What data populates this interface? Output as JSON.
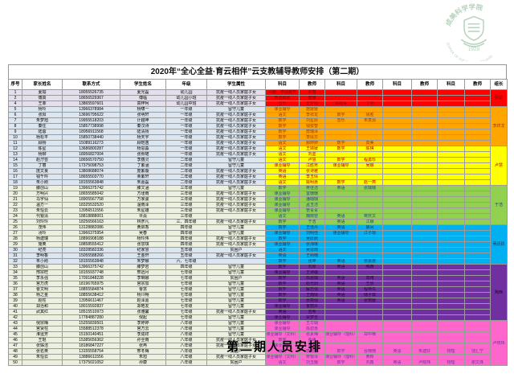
{
  "title": "2020年“全心全益·育云相伴”云支教辅导教师安排（第二期）",
  "caption": "第二期人员安排",
  "logo": {
    "year": "1928",
    "top_text": "成美科学学院",
    "bottom_text": "SCHOOL OF VOCATIONAL COLLEGE"
  },
  "colors": {
    "left": {
      "lav": "#E4DFEC",
      "blue": "#DCE6F1",
      "green": "#EBF1DE"
    },
    "bands": {
      "red": {
        "bg": "#FF0000",
        "fg": "#7F0000"
      },
      "orange": {
        "bg": "#FFA500",
        "fg": "#9C3A00"
      },
      "yellow": {
        "bg": "#FFFF00",
        "fg": "#C00000"
      },
      "green": {
        "bg": "#92D050",
        "fg": "#1F497D"
      },
      "cyan": {
        "bg": "#00B0F0",
        "fg": "#17365D"
      },
      "purple": {
        "bg": "#7030A0",
        "fg": "#26002E"
      },
      "pink": {
        "bg": "#FF66CC",
        "fg": "#7030A0"
      }
    }
  },
  "table": {
    "columns": [
      "序号",
      "家长姓名",
      "联系方式",
      "学生姓名",
      "年级",
      "学生属性",
      "科目",
      "教师",
      "科目",
      "教师",
      "科目",
      "教师",
      "科目",
      "教师",
      "组长"
    ],
    "leaders": {
      "red": "因诺",
      "orange": "李祥龙",
      "yellow": "卢慧",
      "green": "于浩",
      "cyan": "吴跃跃",
      "purple": "陶西",
      "pink": "卢晓玮"
    },
    "rows": [
      [
        "1",
        "夏瑜",
        "18055526735",
        "夏光磊",
        "幼儿园",
        "抗疫一线人员家庭子女",
        "兴趣、学前教育",
        "刘丽",
        "",
        "",
        "",
        "",
        "",
        "",
        "red",
        "lav"
      ],
      [
        "2",
        "傅高",
        "18656529367",
        "傅临",
        "幼儿园小班",
        "抗疫一线人员家庭子女",
        "英语启蒙",
        "娄珊",
        "",
        "",
        "",
        "",
        "",
        "",
        "red",
        "lav"
      ],
      [
        "4",
        "王菲",
        "13865597601",
        "高梓柯",
        "幼儿园中班",
        "抗疫一线人员家庭子女",
        "音乐",
        "王梦瑶",
        "讲故事",
        "丁宇",
        "",
        "",
        "",
        "",
        "red",
        "lav"
      ],
      [
        "5",
        "杨玲",
        "13966378984",
        "杨啸一",
        "一年级",
        "留守儿童",
        "课业辅导",
        "施媛媛",
        "",
        "",
        "",
        "",
        "",
        "",
        "orange",
        "blue"
      ],
      [
        "6",
        "张阳",
        "13696795622",
        "张明轩",
        "一年级",
        "抗疫一线人员家庭子女",
        "语文",
        "李祥龙",
        "数学",
        "徐胜",
        "",
        "",
        "",
        "",
        "orange",
        "blue"
      ],
      [
        "7",
        "朱梦旭",
        "19955518203",
        "计越坤",
        "一年级",
        "抗疫一线人员家庭子女",
        "数学",
        "刘星辰",
        "音乐",
        "朱意源",
        "",
        "",
        "",
        "",
        "orange",
        "blue"
      ],
      [
        "8",
        "秦住",
        "15857738998",
        "秦汉诗",
        "一年级",
        "抗疫一线人员家庭子女",
        "数学",
        "钱俊智",
        "",
        "",
        "",
        "",
        "",
        "",
        "orange",
        "blue"
      ],
      [
        "9",
        "陆蓉",
        "18956911568",
        "陆清扬",
        "一年级",
        "抗疫一线人员家庭子女",
        "数学",
        "唐瑞泽",
        "",
        "",
        "",
        "",
        "",
        "",
        "orange",
        "blue"
      ],
      [
        "10",
        "杨松平",
        "15850738440",
        "杨天宇",
        "一年级",
        "抗疫一线人员家庭子女",
        "数学",
        "李倩华",
        "",
        "",
        "",
        "",
        "",
        "",
        "orange",
        "blue"
      ],
      [
        "11",
        "顾杨",
        "15089116273",
        "顾晗菡",
        "一年级",
        "抗疫一线人员家庭子女",
        "语文",
        "郝婷婷",
        "数学",
        "高美",
        "",
        "",
        "",
        "",
        "orange",
        "blue"
      ],
      [
        "12",
        "陈星",
        "13686800287",
        "杨思淼",
        "一年级",
        "抗疫一线人员家庭子女",
        "语文",
        "王婧媛",
        "数学",
        "陈棋",
        "",
        "",
        "",
        "",
        "yellow",
        "blue"
      ],
      [
        "13",
        "杨柳",
        "18956827004",
        "张熙珺",
        "一年级",
        "抗疫一线人员家庭子女",
        "语文",
        "刘鉴",
        "",
        "",
        "",
        "",
        "",
        "",
        "yellow",
        "blue"
      ],
      [
        "14",
        "赵泞芸",
        "18656570750",
        "李蕴灵",
        "二年级",
        "留守儿童",
        "语文",
        "卢慧",
        "数学",
        "程勇珍",
        "",
        "",
        "",
        "",
        "yellow",
        "blue"
      ],
      [
        "15",
        "丁丽",
        "17375098753",
        "丁紫涵",
        "二年级",
        "留守儿童",
        "课业辅导",
        "江胜男",
        "课业辅导",
        "吴娜",
        "",
        "",
        "",
        "",
        "yellow",
        "blue"
      ],
      [
        "16",
        "庞文良",
        "13808688074",
        "庞紫璇",
        "二年级",
        "抗疫一线人员家庭子女",
        "英语",
        "张诗雅",
        "",
        "",
        "",
        "",
        "",
        "",
        "yellow",
        "blue"
      ],
      [
        "17",
        "钱千吟",
        "18655503770",
        "栗紫轩",
        "二年级",
        "抗疫一线人员家庭子女",
        "英语",
        "李玉倩",
        "",
        "",
        "",
        "",
        "",
        "",
        "yellow",
        "blue"
      ],
      [
        "18",
        "朱小刚",
        "18155563848",
        "朱嘉磊",
        "二年级",
        "抗疫一线人员家庭子女",
        "语文",
        "姚明惠",
        "数学",
        "赵一燕",
        "",
        "",
        "",
        "",
        "yellow",
        "blue"
      ],
      [
        "19",
        "滕创山",
        "13966375742",
        "滕文涵",
        "三年级",
        "留守儿童",
        "数学",
        "蒋佳洁",
        "英语",
        "张璐璐",
        "",
        "",
        "",
        "",
        "green",
        "green"
      ],
      [
        "20",
        "方明兴",
        "18655585042",
        "方瑾雨",
        "三年级",
        "抗疫一线人员家庭子女",
        "课业辅导",
        "宜珊珊",
        "",
        "",
        "",
        "",
        "",
        "",
        "green",
        "green"
      ],
      [
        "21",
        "马宇仙",
        "18905567758",
        "万家骏",
        "三年级",
        "抗疫一线人员家庭子女",
        "课业辅导",
        "潘璐璐",
        "",
        "",
        "",
        "",
        "",
        "",
        "green",
        "green"
      ],
      [
        "22",
        "温方一",
        "18325532520",
        "温雨泽",
        "三年级",
        "抗疫一线人员家庭子女",
        "课业辅导",
        "孟玉洁",
        "",
        "",
        "",
        "",
        "",
        "",
        "green",
        "green"
      ],
      [
        "23",
        "朱恒云",
        "13956511556",
        "朱星雄",
        "三年级",
        "抗疫一线人员家庭子女",
        "课业辅导",
        "管青青",
        "",
        "",
        "",
        "",
        "",
        "",
        "green",
        "green"
      ],
      [
        "24",
        "代银清",
        "18818888001",
        "许焱",
        "三年级",
        "",
        "语文",
        "魏婉容",
        "英语",
        "蒋庆文",
        "",
        "",
        "",
        "",
        "green",
        "green"
      ],
      [
        "25",
        "刘玲玲",
        "18256566163",
        "林彦凡",
        "三、四年级",
        "抗疫一线人员家庭子女",
        "数学",
        "于浩",
        "英语",
        "江娜",
        "",
        "",
        "",
        "",
        "green",
        "green"
      ],
      [
        "26",
        "茂伟",
        "13128882086",
        "黄启香",
        "四年级",
        "留守儿童",
        "数学",
        "王佳丹",
        "英语",
        "薛凤",
        "",
        "",
        "",
        "",
        "cyan",
        "green"
      ],
      [
        "27",
        "汤玲",
        "13966375954",
        "吴春",
        "四年级",
        "留守儿童",
        "课业辅导",
        "刘明佳",
        "课业辅导",
        "江子琼",
        "",
        "",
        "",
        "",
        "cyan",
        "green"
      ],
      [
        "28",
        "杨建瑞",
        "18896908188",
        "杨玲伟",
        "四年级",
        "抗疫一线人员家庭子女",
        "数学",
        "吴跃跃",
        "",
        "",
        "",
        "",
        "",
        "",
        "cyan",
        "green"
      ],
      [
        "29",
        "施奥",
        "18858555412",
        "张慧琪",
        "四年级",
        "抗疫一线人员家庭子女",
        "课业辅导",
        "张湘琳",
        "",
        "",
        "",
        "",
        "",
        "",
        "cyan",
        "green"
      ],
      [
        "30",
        "纪亮",
        "18328582336",
        "纪家慧",
        "五年级",
        "贫困户",
        "语文",
        "吴思雨",
        "",
        "",
        "",
        "",
        "",
        "",
        "cyan",
        "blue"
      ],
      [
        "31",
        "李明香",
        "15055588266",
        "王金轩",
        "五年级",
        "抗疫一线人员家庭子女",
        "英语",
        "王树楠",
        "",
        "",
        "",
        "",
        "",
        "",
        "cyan",
        "blue"
      ],
      [
        "32",
        "朱小刚",
        "18155563848",
        "朱梦娜",
        "六、七年级",
        "",
        "数学",
        "张坤",
        "英语",
        "张嘉惠",
        "",
        "",
        "",
        "",
        "cyan",
        "blue"
      ],
      [
        "33",
        "滕创山",
        "13966375742",
        "滕梦岩",
        "四年级",
        "留守儿童",
        "数学",
        "刘翠",
        "英语",
        "陶西",
        "",
        "",
        "",
        "",
        "purple",
        "green"
      ],
      [
        "34",
        "邢宗旺",
        "18155937748",
        "邢远月",
        "七年级",
        "留守儿童",
        "课业辅导",
        "王诗璇",
        "",
        "",
        "",
        "",
        "",
        "",
        "purple",
        "green"
      ],
      [
        "35",
        "李永强",
        "17091848228",
        "李琳娜",
        "七年级",
        "贫困户",
        "数学",
        "陈嘉璐",
        "英语",
        "高崎",
        "",
        "",
        "",
        "",
        "purple",
        "green"
      ],
      [
        "36",
        "宫万虎",
        "18196765975",
        "宫宗加",
        "七年级",
        "留守儿童",
        "数学",
        "赵光阳",
        "英语",
        "王欣",
        "",
        "",
        "",
        "",
        "purple",
        "green"
      ],
      [
        "37",
        "曹文明",
        "18855584874",
        "曹慧",
        "七年级",
        "留守儿童",
        "数学",
        "解志强",
        "英语",
        "程恭先",
        "",
        "",
        "",
        "",
        "purple",
        "green"
      ],
      [
        "38",
        "杨之金",
        "18855638412",
        "杨川畅",
        "七年级",
        "留守儿童",
        "数学",
        "王雨倩",
        "英语",
        "储子琪",
        "",
        "",
        "",
        "",
        "purple",
        "green"
      ],
      [
        "39",
        "赵柱",
        "13956611467",
        "赵泽嘉",
        "七年级",
        "留守儿童",
        "数学",
        "张丽强",
        "英语",
        "张丽媛",
        "",
        "",
        "",
        "",
        "purple",
        "green"
      ],
      [
        "40",
        "郑治和",
        "18015592837",
        "郑皓友",
        "七年级",
        "留守儿童",
        "课业辅导",
        "官丽卉",
        "",
        "",
        "",
        "",
        "",
        "",
        "purple",
        "green"
      ],
      [
        "41",
        "武其红",
        "18515510973",
        "张雅馨",
        "七年级",
        "抗疫一线人员家庭子女",
        "英语",
        "吉希",
        "",
        "",
        "",
        "",
        "",
        "",
        "purple",
        "green"
      ],
      [
        "42",
        "",
        "17784887280",
        "倪起",
        "七年级",
        "留守儿童",
        "课业辅导",
        "梁梦圭",
        "",
        "",
        "",
        "",
        "",
        "",
        "purple",
        "green"
      ],
      [
        "43",
        "倪宗梅",
        "15255839501",
        "李婷婷",
        "八年级",
        "留守儿童",
        "课业辅导",
        "王华瑚",
        "",
        "",
        "",
        "",
        "",
        "",
        "pink",
        "green"
      ],
      [
        "44",
        "宫贤柱",
        "15588512378",
        "宫万云",
        "八年级",
        "留守儿童",
        "课业辅导",
        "陈碧惠",
        "",
        "",
        "",
        "",
        "",
        "",
        "pink",
        "green"
      ],
      [
        "45",
        "淮运芳",
        "15150140451",
        "李成祥",
        "八年级",
        "留守儿童",
        "课业辅导（文科）",
        "张素梅",
        "课业辅导（理科）",
        "郑中楠",
        "",
        "",
        "",
        "",
        "pink",
        "green"
      ],
      [
        "46",
        "王琨",
        "15385656362",
        "孙全雨",
        "八年级",
        "抗疫一线人员家庭子女",
        "数学",
        "金路",
        "",
        "",
        "",
        "",
        "",
        "",
        "pink",
        "green"
      ],
      [
        "47",
        "张姊洁",
        "18186847227",
        "张冉",
        "八年级",
        "抗疫一线人员家庭子女",
        "课业辅导",
        "吴蕊",
        "",
        "",
        "",
        "",
        "",
        "",
        "pink",
        "green"
      ],
      [
        "48",
        "张名英",
        "13155558754",
        "邢冬梅",
        "八年级",
        "贫困户",
        "语文",
        "唐雨欣",
        "数学",
        "谷楠楠",
        "英语",
        "朱建好",
        "物理",
        "饶汇宁",
        "pink",
        "green"
      ],
      [
        "49",
        "朱恒云",
        "13886611556",
        "朱旭",
        "八年级",
        "抗疫一线人员家庭子女",
        "课业辅导（文科）",
        "蒋银泽",
        "课业辅导（理科）",
        "黄颖",
        "",
        "",
        "",
        "",
        "pink",
        "green"
      ],
      [
        "50",
        "",
        "17375021052",
        "孙康",
        "八年级",
        "贫困户",
        "语文",
        "刘玉娥",
        "数学",
        "刘鑫",
        "英语",
        "卢晓玮",
        "物理",
        "谢文烽",
        "pink",
        "green"
      ]
    ]
  }
}
